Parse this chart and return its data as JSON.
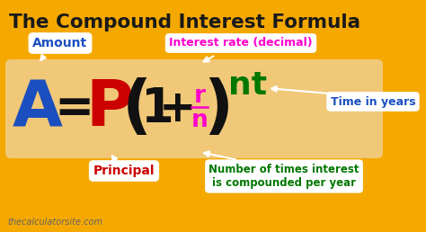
{
  "bg_color": "#F5A800",
  "formula_box_color": "#F0C878",
  "title": "The Compound Interest Formula",
  "title_color": "#1A1A1A",
  "title_fontsize": 15.5,
  "A_color": "#1B4FBF",
  "P_color": "#CC0000",
  "paren_color": "#111111",
  "r_color": "#FF00CC",
  "n_color": "#FF00CC",
  "nt_color": "#007700",
  "amount_label": "Amount",
  "amount_color": "#1B4FBF",
  "principal_label": "Principal",
  "principal_color": "#CC0000",
  "interest_label": "Interest rate (decimal)",
  "interest_color": "#FF00CC",
  "time_label": "Time in years",
  "time_color": "#1B4FBF",
  "compound_label": "Number of times interest\nis compounded per year",
  "compound_color": "#007700",
  "watermark": "thecalculatorsite.com",
  "watermark_color": "#666666",
  "arrow_color": "#FFFFFF",
  "figw": 4.74,
  "figh": 2.58,
  "dpi": 100
}
